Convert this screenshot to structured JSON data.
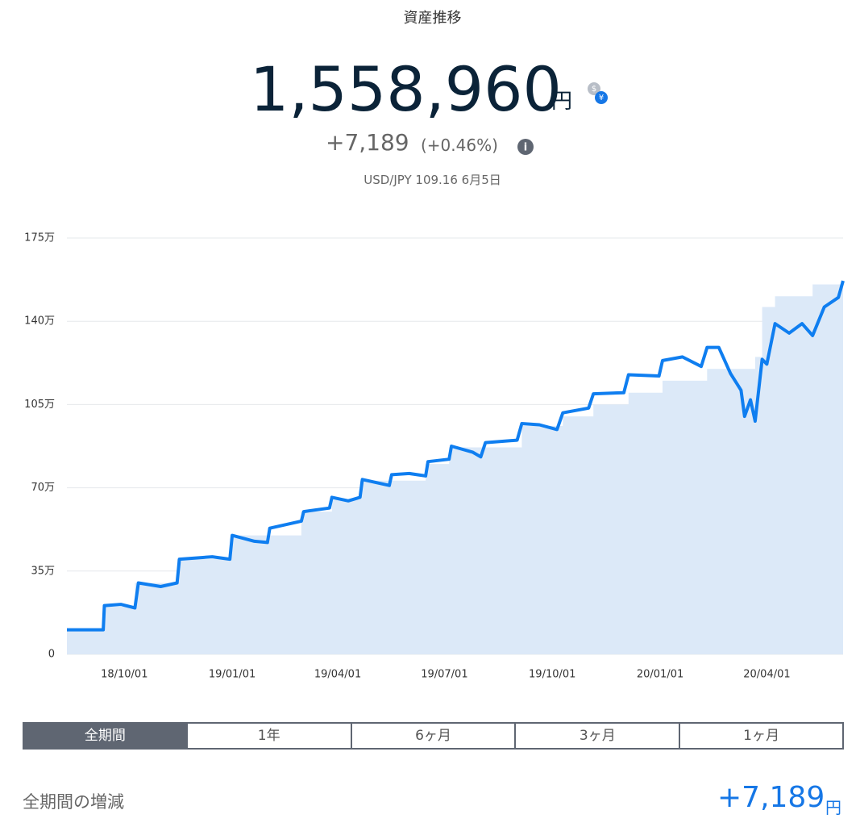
{
  "header": {
    "title": "資産推移",
    "total": "1,558,960",
    "unit": "円",
    "change": "+7,189",
    "change_pct": "(+0.46%)",
    "fx": "USD/JPY 109.16 6月5日"
  },
  "chart_data": {
    "type": "line",
    "xlim": [
      "18/08/13",
      "20/06/05"
    ],
    "xticks": [
      "18/10/01",
      "19/01/01",
      "19/04/01",
      "19/07/01",
      "19/10/01",
      "20/01/01",
      "20/04/01"
    ],
    "ylim": [
      0,
      175
    ],
    "yticks": [
      0,
      {
        "value": 35,
        "label": "35万"
      },
      {
        "value": 70,
        "label": "70万"
      },
      {
        "value": 105,
        "label": "105万"
      },
      {
        "value": 140,
        "label": "140万"
      },
      {
        "value": 175,
        "label": "175万"
      }
    ],
    "grid": true,
    "series": [
      {
        "color": "#dce9f8",
        "step": true,
        "fill": true,
        "x": [
          "18/08/13",
          "18/09/13",
          "18/10/10",
          "18/11/15",
          "18/12/31",
          "19/03/01",
          "19/03/27",
          "19/04/20",
          "19/06/15",
          "19/07/05",
          "19/09/05",
          "19/10/10",
          "19/11/05",
          "19/12/05",
          "20/01/03",
          "20/02/10",
          "20/03/22",
          "20/03/28",
          "20/04/08",
          "20/05/10",
          "20/06/05"
        ],
        "values": [
          10,
          20,
          30,
          40,
          50,
          60,
          65,
          73,
          80,
          87,
          96,
          100,
          105,
          110,
          115,
          120,
          125,
          146,
          150.5,
          155.5,
          155.5
        ]
      },
      {
        "color": "#0f7ef0",
        "x": [
          "18/08/13",
          "18/09/13",
          "18/09/14",
          "18/09/28",
          "18/10/10",
          "18/10/13",
          "18/11/01",
          "18/11/15",
          "18/11/17",
          "18/12/15",
          "18/12/30",
          "19/01/01",
          "19/01/20",
          "19/01/31",
          "19/02/02",
          "19/03/01",
          "19/03/03",
          "19/03/25",
          "19/03/27",
          "19/04/10",
          "19/04/20",
          "19/04/22",
          "19/05/15",
          "19/05/17",
          "19/06/01",
          "19/06/15",
          "19/06/17",
          "19/07/05",
          "19/07/07",
          "19/07/25",
          "19/08/01",
          "19/08/05",
          "19/09/01",
          "19/09/05",
          "19/09/20",
          "19/10/05",
          "19/10/10",
          "19/11/01",
          "19/11/05",
          "19/12/01",
          "19/12/05",
          "19/12/31",
          "20/01/03",
          "20/01/20",
          "20/02/05",
          "20/02/10",
          "20/02/20",
          "20/03/01",
          "20/03/10",
          "20/03/13",
          "20/03/18",
          "20/03/22",
          "20/03/28",
          "20/04/01",
          "20/04/08",
          "20/04/20",
          "20/05/01",
          "20/05/10",
          "20/05/20",
          "20/06/01",
          "20/06/05"
        ],
        "values": [
          10.3,
          10.3,
          20.5,
          21,
          19.5,
          30,
          28.5,
          30,
          40,
          41,
          40,
          50,
          47.5,
          47,
          53,
          56,
          60,
          61.5,
          66,
          64.5,
          66,
          73.5,
          71,
          75.5,
          76,
          75,
          81,
          82,
          87.5,
          85,
          83,
          89,
          90,
          97,
          96.5,
          94.5,
          101.5,
          103.5,
          109.5,
          110,
          117.5,
          117,
          123.5,
          125,
          121,
          129,
          129,
          118,
          111,
          100,
          107,
          98,
          124,
          122,
          139,
          135,
          139,
          134,
          146,
          150,
          157
        ]
      }
    ]
  },
  "tabs": {
    "items": [
      "全期間",
      "1年",
      "6ヶ月",
      "3ヶ月",
      "1ヶ月"
    ],
    "active": 0
  },
  "summary": {
    "label": "全期間の増減",
    "value": "+7,189",
    "unit": "円"
  }
}
